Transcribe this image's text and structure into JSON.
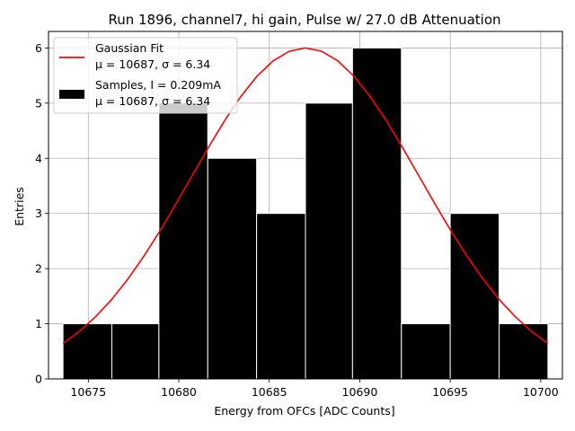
{
  "chart_data": {
    "type": "bar",
    "title": "Run 1896, channel7, hi gain, Pulse w/ 27.0 dB Attenuation",
    "xlabel": "Energy from OFCs [ADC Counts]",
    "ylabel": "Entries",
    "xlim": [
      10672.8,
      10701.2
    ],
    "ylim": [
      0,
      6.3
    ],
    "xticks": [
      10675,
      10680,
      10685,
      10690,
      10695,
      10700
    ],
    "yticks": [
      0,
      1,
      2,
      3,
      4,
      5,
      6
    ],
    "grid": true,
    "bin_edges": [
      10673.6,
      10676.3,
      10678.9,
      10681.6,
      10684.3,
      10687.0,
      10689.6,
      10692.3,
      10695.0,
      10697.7,
      10700.4
    ],
    "counts": [
      1,
      1,
      5,
      4,
      3,
      5,
      6,
      1,
      3,
      1
    ],
    "fit": {
      "mu": 10687,
      "sigma": 6.34,
      "amplitude": 6.0,
      "x_range": [
        10673.6,
        10700.4
      ],
      "color": "#ff0000"
    },
    "bar_color": "#000000",
    "legend": {
      "position": "upper-left",
      "fit_label_line1": "Gaussian Fit",
      "fit_label_line2": "μ = 10687, σ = 6.34",
      "samples_label_line1": "Samples, I = 0.209mA",
      "samples_label_line2": "μ = 10687, σ = 6.34"
    }
  }
}
